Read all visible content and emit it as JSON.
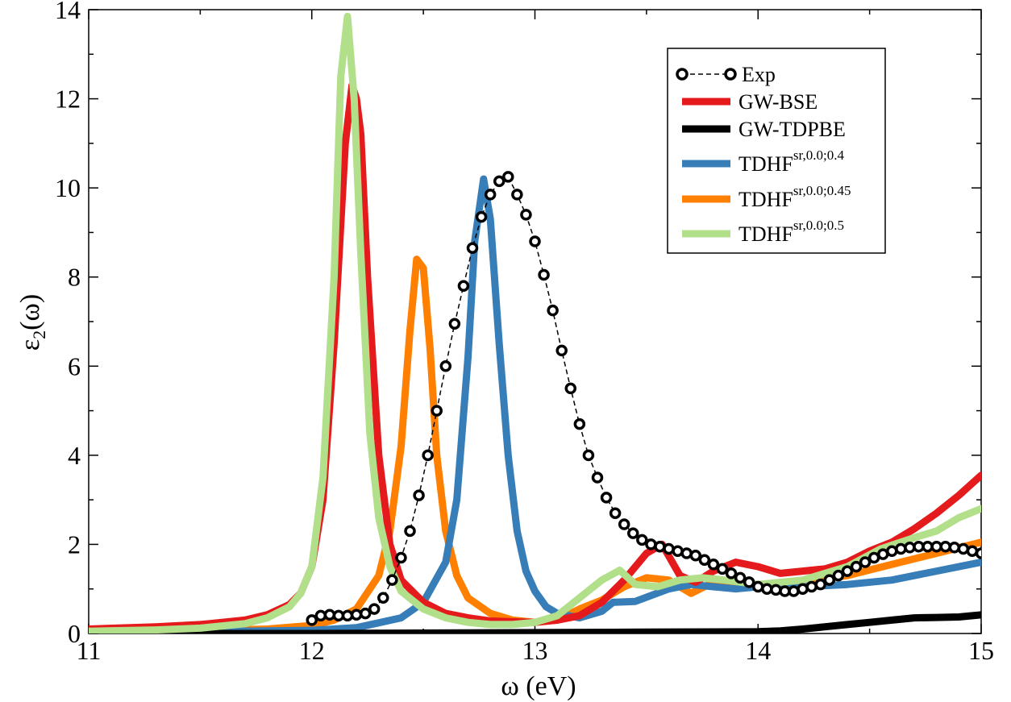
{
  "chart_data": {
    "type": "line",
    "xlabel": "ω (eV)",
    "ylabel_base": "ε",
    "ylabel_sub": "2",
    "ylabel_tail": "(ω)",
    "xlim": [
      11,
      15
    ],
    "ylim": [
      0,
      14
    ],
    "x_ticks": [
      11,
      12,
      13,
      14,
      15
    ],
    "y_ticks": [
      0,
      2,
      4,
      6,
      8,
      10,
      12,
      14
    ],
    "grid": false,
    "legend_position": "top-right",
    "series": [
      {
        "name": "Exp",
        "style": "markers-dashed",
        "color": "#000000",
        "x": [
          12.0,
          12.04,
          12.08,
          12.12,
          12.16,
          12.2,
          12.24,
          12.28,
          12.32,
          12.36,
          12.4,
          12.44,
          12.48,
          12.52,
          12.56,
          12.6,
          12.64,
          12.68,
          12.72,
          12.76,
          12.8,
          12.84,
          12.88,
          12.92,
          12.96,
          13.0,
          13.04,
          13.08,
          13.12,
          13.16,
          13.2,
          13.24,
          13.28,
          13.32,
          13.36,
          13.4,
          13.44,
          13.48,
          13.52,
          13.56,
          13.6,
          13.64,
          13.68,
          13.72,
          13.76,
          13.8,
          13.84,
          13.88,
          13.92,
          13.96,
          14.0,
          14.04,
          14.08,
          14.12,
          14.16,
          14.2,
          14.24,
          14.28,
          14.32,
          14.36,
          14.4,
          14.44,
          14.48,
          14.52,
          14.56,
          14.6,
          14.64,
          14.68,
          14.72,
          14.76,
          14.8,
          14.84,
          14.88,
          14.92,
          14.96,
          15.0
        ],
        "values": [
          0.3,
          0.4,
          0.42,
          0.4,
          0.4,
          0.42,
          0.45,
          0.55,
          0.8,
          1.2,
          1.7,
          2.3,
          3.1,
          4.0,
          5.0,
          6.0,
          6.95,
          7.8,
          8.65,
          9.35,
          9.85,
          10.15,
          10.25,
          9.85,
          9.4,
          8.8,
          8.05,
          7.25,
          6.35,
          5.5,
          4.7,
          4.0,
          3.5,
          3.05,
          2.7,
          2.45,
          2.25,
          2.1,
          2.0,
          1.95,
          1.9,
          1.85,
          1.8,
          1.75,
          1.65,
          1.55,
          1.45,
          1.35,
          1.25,
          1.15,
          1.05,
          1.0,
          0.98,
          0.95,
          0.95,
          1.0,
          1.05,
          1.1,
          1.2,
          1.3,
          1.4,
          1.5,
          1.6,
          1.7,
          1.78,
          1.85,
          1.9,
          1.93,
          1.95,
          1.95,
          1.95,
          1.95,
          1.93,
          1.9,
          1.85,
          1.8
        ]
      },
      {
        "name": "GW-BSE",
        "style": "line",
        "color": "#e41a1c",
        "x": [
          11.0,
          11.3,
          11.5,
          11.7,
          11.8,
          11.9,
          11.95,
          12.0,
          12.05,
          12.1,
          12.15,
          12.18,
          12.2,
          12.22,
          12.25,
          12.3,
          12.35,
          12.4,
          12.5,
          12.6,
          12.7,
          12.8,
          13.0,
          13.1,
          13.2,
          13.3,
          13.4,
          13.5,
          13.57,
          13.65,
          13.72,
          13.8,
          13.9,
          14.0,
          14.1,
          14.2,
          14.3,
          14.4,
          14.5,
          14.6,
          14.7,
          14.8,
          14.9,
          15.0
        ],
        "values": [
          0.1,
          0.15,
          0.2,
          0.3,
          0.42,
          0.65,
          0.9,
          1.5,
          3.0,
          6.5,
          11.0,
          12.3,
          12.0,
          11.2,
          8.0,
          4.0,
          2.0,
          1.2,
          0.7,
          0.45,
          0.35,
          0.28,
          0.25,
          0.3,
          0.4,
          0.7,
          1.2,
          1.8,
          2.0,
          1.3,
          1.15,
          1.4,
          1.6,
          1.5,
          1.35,
          1.4,
          1.45,
          1.6,
          1.85,
          2.05,
          2.35,
          2.7,
          3.1,
          3.55
        ]
      },
      {
        "name": "GW-TDPBE",
        "style": "line",
        "color": "#000000",
        "x": [
          11.0,
          12.0,
          13.0,
          13.5,
          14.0,
          14.1,
          14.2,
          14.3,
          14.4,
          14.5,
          14.6,
          14.7,
          14.8,
          14.9,
          15.0
        ],
        "values": [
          0.0,
          0.0,
          0.02,
          0.03,
          0.04,
          0.06,
          0.1,
          0.15,
          0.2,
          0.25,
          0.3,
          0.35,
          0.36,
          0.37,
          0.42
        ]
      },
      {
        "name": "TDHF",
        "label_sup": "sr,0.0;0.4",
        "style": "line",
        "color": "#377eb8",
        "x": [
          11.0,
          11.5,
          12.0,
          12.2,
          12.4,
          12.5,
          12.6,
          12.65,
          12.7,
          12.73,
          12.77,
          12.8,
          12.84,
          12.88,
          12.92,
          12.96,
          13.0,
          13.05,
          13.1,
          13.2,
          13.3,
          13.35,
          13.45,
          13.6,
          13.7,
          13.8,
          13.9,
          14.0,
          14.2,
          14.4,
          14.6,
          14.8,
          15.0
        ],
        "values": [
          0.03,
          0.04,
          0.07,
          0.13,
          0.35,
          0.7,
          1.6,
          3.0,
          6.2,
          8.8,
          10.2,
          9.3,
          6.5,
          4.0,
          2.3,
          1.4,
          0.95,
          0.6,
          0.45,
          0.35,
          0.5,
          0.7,
          0.72,
          1.0,
          1.1,
          1.05,
          1.0,
          1.05,
          1.05,
          1.1,
          1.2,
          1.4,
          1.6
        ]
      },
      {
        "name": "TDHF",
        "label_sup": "sr,0.0;0.45",
        "style": "line",
        "color": "#ff7f00",
        "x": [
          11.0,
          11.5,
          11.8,
          12.0,
          12.1,
          12.2,
          12.3,
          12.35,
          12.4,
          12.44,
          12.47,
          12.5,
          12.53,
          12.56,
          12.6,
          12.65,
          12.7,
          12.8,
          12.9,
          13.0,
          13.1,
          13.2,
          13.3,
          13.4,
          13.5,
          13.6,
          13.7,
          13.8,
          14.0,
          14.2,
          14.4,
          14.6,
          14.8,
          15.0
        ],
        "values": [
          0.04,
          0.06,
          0.1,
          0.18,
          0.3,
          0.55,
          1.3,
          2.3,
          4.2,
          6.8,
          8.4,
          8.2,
          6.4,
          4.0,
          2.3,
          1.3,
          0.8,
          0.45,
          0.3,
          0.25,
          0.3,
          0.55,
          0.75,
          1.05,
          1.25,
          1.2,
          0.9,
          1.15,
          1.1,
          1.15,
          1.3,
          1.55,
          1.8,
          2.05
        ]
      },
      {
        "name": "TDHF",
        "label_sup": "sr,0.0;0.5",
        "style": "line",
        "color": "#b2df8a",
        "x": [
          11.0,
          11.3,
          11.5,
          11.7,
          11.8,
          11.9,
          11.95,
          12.0,
          12.05,
          12.1,
          12.13,
          12.16,
          12.19,
          12.22,
          12.26,
          12.3,
          12.35,
          12.4,
          12.5,
          12.6,
          12.7,
          12.8,
          12.9,
          13.0,
          13.1,
          13.2,
          13.3,
          13.38,
          13.45,
          13.55,
          13.65,
          13.75,
          13.85,
          14.0,
          14.2,
          14.4,
          14.55,
          14.7,
          14.8,
          14.9,
          15.0
        ],
        "values": [
          0.05,
          0.08,
          0.12,
          0.22,
          0.35,
          0.6,
          0.9,
          1.5,
          3.5,
          8.0,
          12.5,
          13.85,
          12.0,
          8.5,
          4.5,
          2.6,
          1.5,
          0.95,
          0.55,
          0.35,
          0.25,
          0.2,
          0.2,
          0.25,
          0.4,
          0.8,
          1.2,
          1.42,
          1.1,
          1.05,
          1.2,
          1.25,
          1.2,
          1.1,
          1.2,
          1.5,
          1.9,
          2.15,
          2.3,
          2.6,
          2.8
        ]
      }
    ]
  }
}
